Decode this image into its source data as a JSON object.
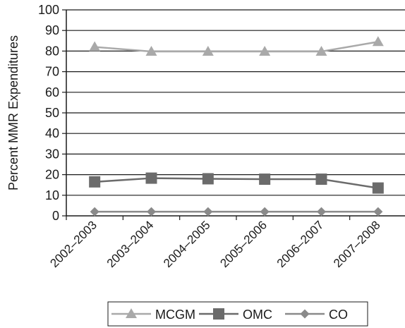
{
  "chart_data": {
    "type": "line",
    "categories": [
      "2002–2003",
      "2003–2004",
      "2004–2005",
      "2005–2006",
      "2006–2007",
      "2007–2008"
    ],
    "series": [
      {
        "name": "MCGM",
        "values": [
          82,
          79.8,
          79.8,
          79.8,
          79.8,
          84.5
        ],
        "color": "#a9a9a9",
        "marker": "triangle"
      },
      {
        "name": "OMC",
        "values": [
          16.5,
          18.3,
          18,
          17.8,
          17.8,
          13.5
        ],
        "color": "#6b6b6b",
        "marker": "square"
      },
      {
        "name": "CO",
        "values": [
          2,
          2,
          2,
          2,
          2,
          2
        ],
        "color": "#8a8a8a",
        "marker": "diamond"
      }
    ],
    "ylabel": "Percent MMR Expenditures",
    "ylim": [
      0,
      100
    ],
    "yticks": [
      0,
      10,
      20,
      30,
      40,
      50,
      60,
      70,
      80,
      90,
      100
    ],
    "grid": true,
    "legend": "bottom"
  }
}
